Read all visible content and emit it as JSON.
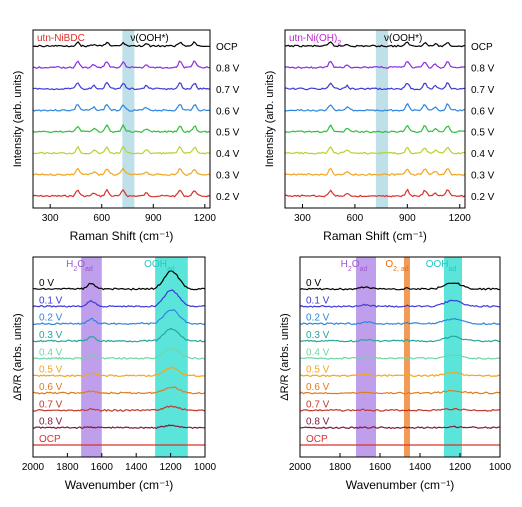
{
  "chart_data": [
    {
      "type": "line",
      "panel": "top-left",
      "sample_label": "utn-NiBDC",
      "sample_color": "#d9312b",
      "band_label": "ν(OOH*)",
      "band_x": [
        720,
        790
      ],
      "xlabel": "Raman Shift (cm⁻¹)",
      "ylabel": "Intensity (arb. units)",
      "xlim": [
        200,
        1230
      ],
      "x_ticks": [
        "300",
        "600",
        "900",
        "1200"
      ],
      "x_tick_values": [
        300,
        600,
        900,
        1200
      ],
      "peaks_x": [
        460,
        555,
        630,
        725,
        860,
        1055,
        1140
      ],
      "series": [
        {
          "name": "OCP",
          "color": "#000000"
        },
        {
          "name": "0.8 V",
          "color": "#8b2be2"
        },
        {
          "name": "0.7 V",
          "color": "#3b3bd6"
        },
        {
          "name": "0.6 V",
          "color": "#2e86de"
        },
        {
          "name": "0.5 V",
          "color": "#2fbf3a"
        },
        {
          "name": "0.4 V",
          "color": "#b5d334"
        },
        {
          "name": "0.3 V",
          "color": "#f2a51f"
        },
        {
          "name": "0.2 V",
          "color": "#d9312b"
        }
      ]
    },
    {
      "type": "line",
      "panel": "top-right",
      "sample_label": "utn-Ni(OH)",
      "sample_sub": "2",
      "sample_color": "#c026d3",
      "band_label": "ν(OOH*)",
      "band_x": [
        720,
        790
      ],
      "xlabel": "Raman Shift (cm⁻¹)",
      "ylabel": "Intensity (arb. units)",
      "xlim": [
        200,
        1230
      ],
      "x_ticks": [
        "300",
        "600",
        "900",
        "1200"
      ],
      "x_tick_values": [
        300,
        600,
        900,
        1200
      ],
      "peaks_x": [
        460,
        555,
        900,
        1000,
        1060,
        1130
      ],
      "series": [
        {
          "name": "OCP",
          "color": "#000000"
        },
        {
          "name": "0.8 V",
          "color": "#8b2be2"
        },
        {
          "name": "0.7 V",
          "color": "#3b3bd6"
        },
        {
          "name": "0.6 V",
          "color": "#2e86de"
        },
        {
          "name": "0.5 V",
          "color": "#2fbf3a"
        },
        {
          "name": "0.4 V",
          "color": "#b5d334"
        },
        {
          "name": "0.3 V",
          "color": "#f2a51f"
        },
        {
          "name": "0.2 V",
          "color": "#d9312b"
        }
      ]
    },
    {
      "type": "line",
      "panel": "bottom-left",
      "xlabel": "Wavenumber (cm⁻¹)",
      "ylabel": "ΔR/R (arbs. units)",
      "xlim": [
        2000,
        1000
      ],
      "x_reversed": true,
      "x_ticks": [
        "2000",
        "1800",
        "1600",
        "1400",
        "1200",
        "1000"
      ],
      "x_tick_values": [
        2000,
        1800,
        1600,
        1400,
        1200,
        1000
      ],
      "bands": [
        {
          "label_main": "H",
          "label_sub1": "2",
          "label_mid": "O",
          "label_sub2": "ad",
          "range": [
            1720,
            1600
          ],
          "color": "#b48ee8",
          "label_color": "#9b59d0"
        },
        {
          "label_main": "OOH",
          "label_sub2": "ad",
          "range": [
            1290,
            1100
          ],
          "color": "#3ee0d4",
          "label_color": "#27c6c0"
        }
      ],
      "series": [
        {
          "name": "0 V",
          "color": "#000000"
        },
        {
          "name": "0.1 V",
          "color": "#3b3bd6"
        },
        {
          "name": "0.2 V",
          "color": "#2e86de"
        },
        {
          "name": "0.3 V",
          "color": "#26a69a"
        },
        {
          "name": "0.4 V",
          "color": "#6fd6a6"
        },
        {
          "name": "0.5 V",
          "color": "#f2a51f"
        },
        {
          "name": "0.6 V",
          "color": "#e07b1a"
        },
        {
          "name": "0.7 V",
          "color": "#c0392b"
        },
        {
          "name": "0.8 V",
          "color": "#7b1a3a"
        },
        {
          "name": "OCP",
          "color": "#d9312b"
        }
      ]
    },
    {
      "type": "line",
      "panel": "bottom-right",
      "xlabel": "Wavenumber (cm⁻¹)",
      "ylabel": "ΔR/R (arbs. units)",
      "xlim": [
        2000,
        1000
      ],
      "x_reversed": true,
      "x_ticks": [
        "2000",
        "1800",
        "1600",
        "1400",
        "1200",
        "1000"
      ],
      "x_tick_values": [
        2000,
        1800,
        1600,
        1400,
        1200,
        1000
      ],
      "bands": [
        {
          "label_main": "H",
          "label_sub1": "2",
          "label_mid": "O",
          "label_sub2": "ad",
          "range": [
            1720,
            1620
          ],
          "color": "#b48ee8",
          "label_color": "#9b59d0"
        },
        {
          "label_main": "O",
          "label_sub1": "2, ad",
          "range": [
            1480,
            1450
          ],
          "color": "#f08a3a",
          "label_color": "#e0701a"
        },
        {
          "label_main": "OOH",
          "label_sub2": "ad",
          "range": [
            1280,
            1190
          ],
          "color": "#3ee0d4",
          "label_color": "#27c6c0"
        }
      ],
      "series": [
        {
          "name": "0 V",
          "color": "#000000"
        },
        {
          "name": "0.1 V",
          "color": "#3b3bd6"
        },
        {
          "name": "0.2 V",
          "color": "#2e86de"
        },
        {
          "name": "0.3 V",
          "color": "#26a69a"
        },
        {
          "name": "0.4 V",
          "color": "#6fd6a6"
        },
        {
          "name": "0.5 V",
          "color": "#f2a51f"
        },
        {
          "name": "0.6 V",
          "color": "#e07b1a"
        },
        {
          "name": "0.7 V",
          "color": "#c0392b"
        },
        {
          "name": "0.8 V",
          "color": "#7b1a3a"
        },
        {
          "name": "OCP",
          "color": "#d9312b"
        }
      ]
    }
  ]
}
